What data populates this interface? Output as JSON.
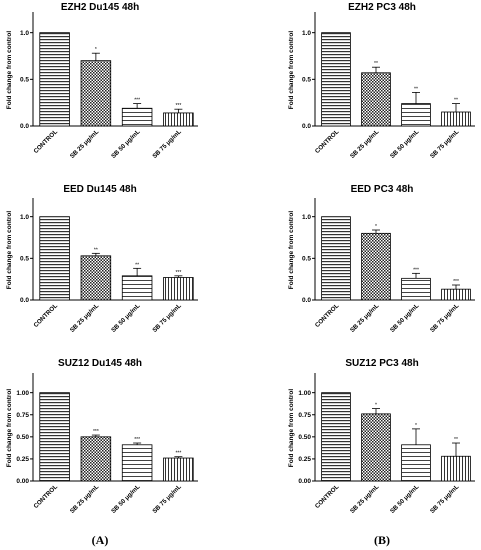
{
  "panel_labels": [
    "(A)",
    "(B)"
  ],
  "chart_data": [
    {
      "type": "bar",
      "title": "EZH2 Du145 48h",
      "ylabel": "Fold change from control",
      "ylim": [
        0,
        1.2
      ],
      "yticks": [
        "0.0",
        "0.5",
        "1.0"
      ],
      "categories": [
        "CONTROL",
        "SB 25 μg/mL",
        "SB 50 μg/mL",
        "SB 75 μg/mL"
      ],
      "values": [
        1.0,
        0.7,
        0.19,
        0.14
      ],
      "errors": [
        0,
        0.08,
        0.05,
        0.04
      ],
      "significance": [
        "",
        "*",
        "***",
        "***"
      ]
    },
    {
      "type": "bar",
      "title": "EZH2 PC3 48h",
      "ylabel": "Fold change from control",
      "ylim": [
        0,
        1.2
      ],
      "yticks": [
        "0.0",
        "0.5",
        "1.0"
      ],
      "categories": [
        "CONTROL",
        "SB 25 μg/mL",
        "SB 50 μg/mL",
        "SB 75 μg/mL"
      ],
      "values": [
        1.0,
        0.57,
        0.24,
        0.15
      ],
      "errors": [
        0,
        0.06,
        0.12,
        0.09
      ],
      "significance": [
        "",
        "**",
        "**",
        "**"
      ]
    },
    {
      "type": "bar",
      "title": "EED Du145 48h",
      "ylabel": "Fold change from control",
      "ylim": [
        0,
        1.2
      ],
      "yticks": [
        "0.0",
        "0.5",
        "1.0"
      ],
      "categories": [
        "CONTROL",
        "SB 25 μg/mL",
        "SB 50 μg/mL",
        "SB 75 μg/mL"
      ],
      "values": [
        1.0,
        0.53,
        0.29,
        0.27
      ],
      "errors": [
        0,
        0.03,
        0.09,
        0.02
      ],
      "significance": [
        "",
        "**",
        "**",
        "***"
      ]
    },
    {
      "type": "bar",
      "title": "EED PC3 48h",
      "ylabel": "Fold change from control",
      "ylim": [
        0,
        1.2
      ],
      "yticks": [
        "0.0",
        "0.5",
        "1.0"
      ],
      "categories": [
        "CONTROL",
        "SB 25 μg/mL",
        "SB 50 μg/mL",
        "SB 75 μg/mL"
      ],
      "values": [
        1.0,
        0.8,
        0.26,
        0.13
      ],
      "errors": [
        0,
        0.04,
        0.06,
        0.05
      ],
      "significance": [
        "",
        "*",
        "***",
        "***"
      ]
    },
    {
      "type": "bar",
      "title": "SUZ12 Du145 48h",
      "ylabel": "Fold change from control",
      "ylim": [
        0,
        1.2
      ],
      "yticks": [
        "0.00",
        "0.25",
        "0.50",
        "0.75",
        "1.00"
      ],
      "categories": [
        "CONTROL",
        "SB 25 μg/mL",
        "SB 50 μg/mL",
        "SB 75 μg/mL"
      ],
      "values": [
        1.0,
        0.5,
        0.41,
        0.26
      ],
      "errors": [
        0,
        0.02,
        0.02,
        0.015
      ],
      "significance": [
        "",
        "***",
        "***",
        "***"
      ]
    },
    {
      "type": "bar",
      "title": "SUZ12 PC3 48h",
      "ylabel": "Fold change from control",
      "ylim": [
        0,
        1.2
      ],
      "yticks": [
        "0.00",
        "0.25",
        "0.50",
        "0.75",
        "1.00"
      ],
      "categories": [
        "CONTROL",
        "SB 25 μg/mL",
        "SB 50 μg/mL",
        "SB 75 μg/mL"
      ],
      "values": [
        1.0,
        0.76,
        0.41,
        0.28
      ],
      "errors": [
        0,
        0.06,
        0.18,
        0.15
      ],
      "significance": [
        "",
        "*",
        "*",
        "**"
      ]
    }
  ]
}
